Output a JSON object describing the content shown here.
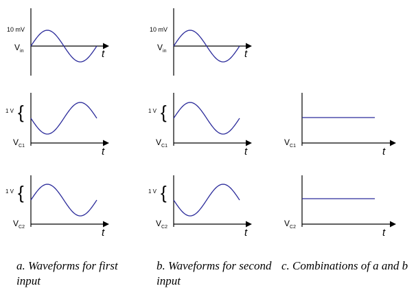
{
  "labels": {
    "amp_small": "10 mV",
    "amp_big": "1 V",
    "brace": "{",
    "t": "t",
    "V": "V",
    "sub_in": "in",
    "sub_c1": "C1",
    "sub_c2": "C2"
  },
  "panels": [
    {
      "id": "a-input",
      "column": "a",
      "signal": "V_in",
      "amplitude": "10 mV",
      "waveform": "sine",
      "phase": "rising"
    },
    {
      "id": "a-vc1",
      "column": "a",
      "signal": "V_C1",
      "amplitude": "1 V",
      "waveform": "sine",
      "phase": "falling"
    },
    {
      "id": "a-vc2",
      "column": "a",
      "signal": "V_C2",
      "amplitude": "1 V",
      "waveform": "sine",
      "phase": "rising"
    },
    {
      "id": "b-input",
      "column": "b",
      "signal": "V_in",
      "amplitude": "10 mV",
      "waveform": "sine",
      "phase": "rising"
    },
    {
      "id": "b-vc1",
      "column": "b",
      "signal": "V_C1",
      "amplitude": "1 V",
      "waveform": "sine",
      "phase": "rising"
    },
    {
      "id": "b-vc2",
      "column": "b",
      "signal": "V_C2",
      "amplitude": "1 V",
      "waveform": "sine",
      "phase": "falling"
    },
    {
      "id": "c-vc1",
      "column": "c",
      "signal": "V_C1",
      "amplitude": "",
      "waveform": "constant",
      "phase": ""
    },
    {
      "id": "c-vc2",
      "column": "c",
      "signal": "V_C2",
      "amplitude": "",
      "waveform": "constant",
      "phase": ""
    }
  ],
  "captions": {
    "a_line1": "a. Waveforms for first",
    "a_line2": "input",
    "b_line1": "b. Waveforms for second",
    "b_line2": "input",
    "c_line1": "c. Combinations of a and b"
  },
  "colors": {
    "wave": "#2a2a9a",
    "axis": "#000000"
  }
}
